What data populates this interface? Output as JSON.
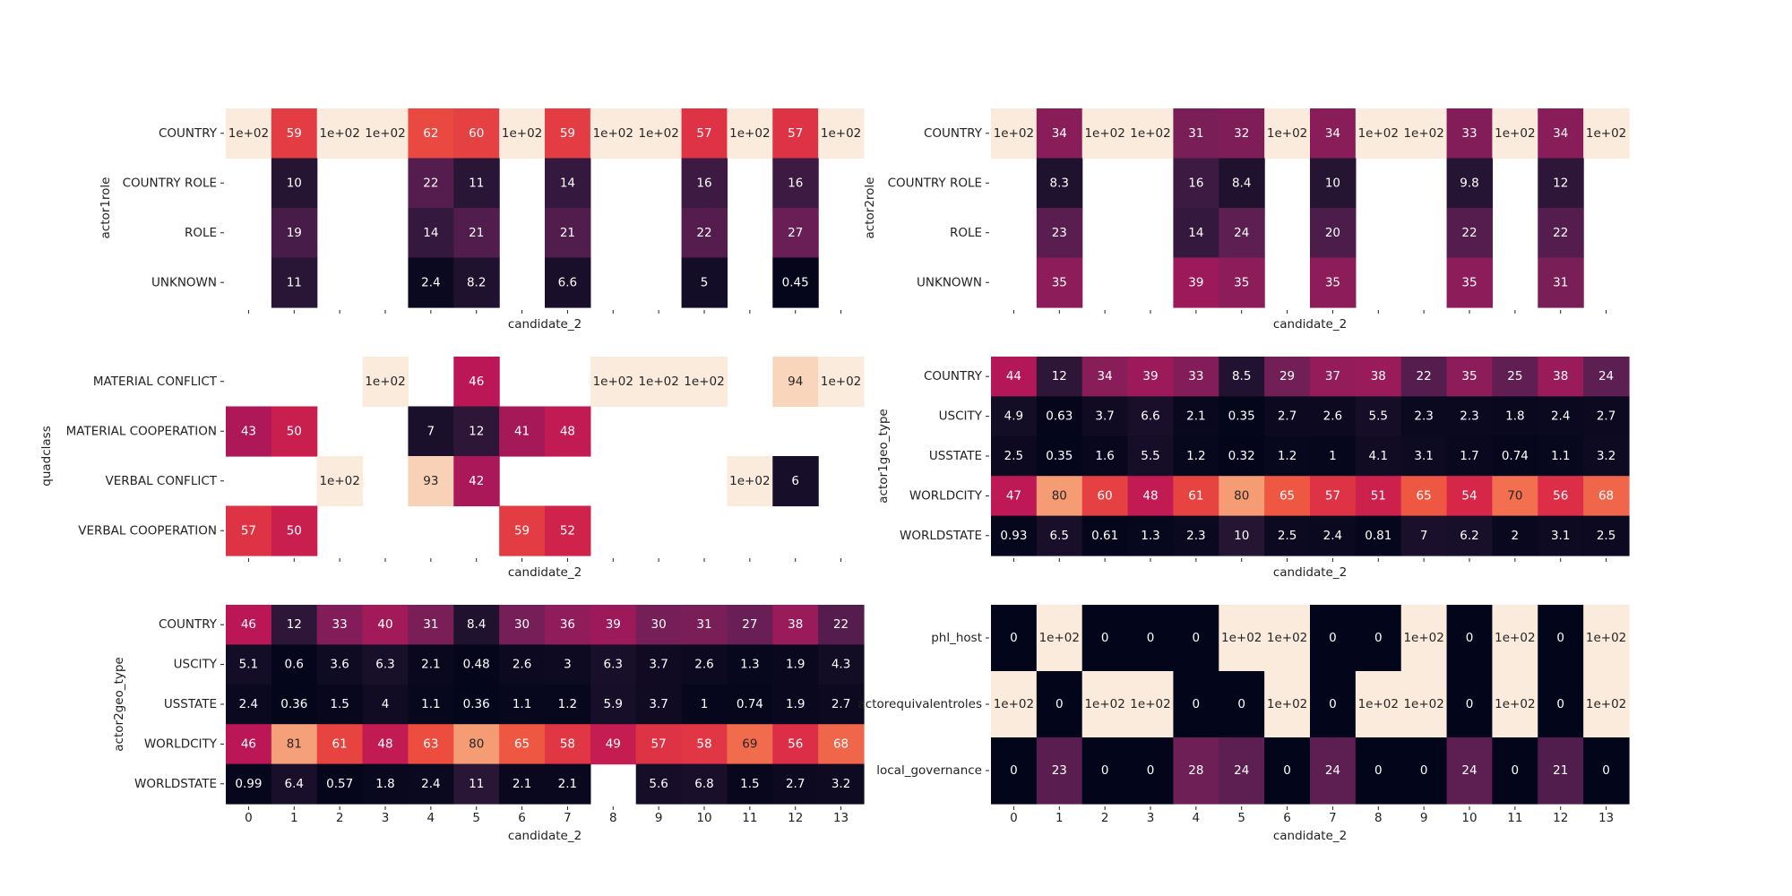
{
  "colormap": [
    "#03051a",
    "#221331",
    "#451c47",
    "#6a1f56",
    "#921c5b",
    "#b91657",
    "#d92847",
    "#ed503e",
    "#f47d57",
    "#f6a47c",
    "#f7c9aa",
    "#faebdd"
  ],
  "chart_data": [
    {
      "type": "heatmap",
      "ylabel": "actor1role",
      "xlabel": "candidate_2",
      "categories_x": [
        "0",
        "1",
        "2",
        "3",
        "4",
        "5",
        "6",
        "7",
        "8",
        "9",
        "10",
        "11",
        "12",
        "13"
      ],
      "x_tick_labels_shown": false,
      "categories_y": [
        "COUNTRY",
        "COUNTRY ROLE",
        "ROLE",
        "UNKNOWN"
      ],
      "vmin": 0,
      "vmax": 100,
      "values": [
        [
          100,
          59,
          100,
          100,
          62,
          60,
          100,
          59,
          100,
          100,
          57,
          100,
          57,
          100
        ],
        [
          null,
          10,
          null,
          null,
          22,
          11,
          null,
          14,
          null,
          null,
          16,
          null,
          16,
          null
        ],
        [
          null,
          19,
          null,
          null,
          14,
          21,
          null,
          21,
          null,
          null,
          22,
          null,
          27,
          null
        ],
        [
          null,
          11,
          null,
          null,
          2.4,
          8.2,
          null,
          6.6,
          null,
          null,
          5,
          null,
          0.45,
          null
        ]
      ],
      "annotations": [
        [
          "1e+02",
          "59",
          "1e+02",
          "1e+02",
          "62",
          "60",
          "1e+02",
          "59",
          "1e+02",
          "1e+02",
          "57",
          "1e+02",
          "57",
          "1e+02"
        ],
        [
          "",
          "10",
          "",
          "",
          "22",
          "11",
          "",
          "14",
          "",
          "",
          "16",
          "",
          "16",
          ""
        ],
        [
          "",
          "19",
          "",
          "",
          "14",
          "21",
          "",
          "21",
          "",
          "",
          "22",
          "",
          "27",
          ""
        ],
        [
          "",
          "11",
          "",
          "",
          "2.4",
          "8.2",
          "",
          "6.6",
          "",
          "",
          "5",
          "",
          "0.45",
          ""
        ]
      ]
    },
    {
      "type": "heatmap",
      "ylabel": "actor2role",
      "xlabel": "candidate_2",
      "categories_x": [
        "0",
        "1",
        "2",
        "3",
        "4",
        "5",
        "6",
        "7",
        "8",
        "9",
        "10",
        "11",
        "12",
        "13"
      ],
      "x_tick_labels_shown": false,
      "categories_y": [
        "COUNTRY",
        "COUNTRY ROLE",
        "ROLE",
        "UNKNOWN"
      ],
      "vmin": 0,
      "vmax": 100,
      "values": [
        [
          100,
          34,
          100,
          100,
          31,
          32,
          100,
          34,
          100,
          100,
          33,
          100,
          34,
          100
        ],
        [
          null,
          8.3,
          null,
          null,
          16,
          8.4,
          null,
          10,
          null,
          null,
          9.8,
          null,
          12,
          null
        ],
        [
          null,
          23,
          null,
          null,
          14,
          24,
          null,
          20,
          null,
          null,
          22,
          null,
          22,
          null
        ],
        [
          null,
          35,
          null,
          null,
          39,
          35,
          null,
          35,
          null,
          null,
          35,
          null,
          31,
          null
        ]
      ],
      "annotations": [
        [
          "1e+02",
          "34",
          "1e+02",
          "1e+02",
          "31",
          "32",
          "1e+02",
          "34",
          "1e+02",
          "1e+02",
          "33",
          "1e+02",
          "34",
          "1e+02"
        ],
        [
          "",
          "8.3",
          "",
          "",
          "16",
          "8.4",
          "",
          "10",
          "",
          "",
          "9.8",
          "",
          "12",
          ""
        ],
        [
          "",
          "23",
          "",
          "",
          "14",
          "24",
          "",
          "20",
          "",
          "",
          "22",
          "",
          "22",
          ""
        ],
        [
          "",
          "35",
          "",
          "",
          "39",
          "35",
          "",
          "35",
          "",
          "",
          "35",
          "",
          "31",
          ""
        ]
      ]
    },
    {
      "type": "heatmap",
      "ylabel": "quadclass",
      "xlabel": "candidate_2",
      "categories_x": [
        "0",
        "1",
        "2",
        "3",
        "4",
        "5",
        "6",
        "7",
        "8",
        "9",
        "10",
        "11",
        "12",
        "13"
      ],
      "x_tick_labels_shown": false,
      "categories_y": [
        "MATERIAL CONFLICT",
        "MATERIAL COOPERATION",
        "VERBAL CONFLICT",
        "VERBAL COOPERATION"
      ],
      "vmin": 0,
      "vmax": 100,
      "values": [
        [
          null,
          null,
          null,
          100,
          null,
          46,
          null,
          null,
          100,
          100,
          100,
          null,
          94,
          100
        ],
        [
          43,
          50,
          null,
          null,
          7,
          12,
          41,
          48,
          null,
          null,
          null,
          null,
          null,
          null
        ],
        [
          null,
          null,
          100,
          null,
          93,
          42,
          null,
          null,
          null,
          null,
          null,
          100,
          6,
          null
        ],
        [
          57,
          50,
          null,
          null,
          null,
          null,
          59,
          52,
          null,
          null,
          null,
          null,
          null,
          null
        ]
      ],
      "annotations": [
        [
          "",
          "",
          "",
          "1e+02",
          "",
          "46",
          "",
          "",
          "1e+02",
          "1e+02",
          "1e+02",
          "",
          "94",
          "1e+02"
        ],
        [
          "43",
          "50",
          "",
          "",
          "7",
          "12",
          "41",
          "48",
          "",
          "",
          "",
          "",
          "",
          ""
        ],
        [
          "",
          "",
          "1e+02",
          "",
          "93",
          "42",
          "",
          "",
          "",
          "",
          "",
          "1e+02",
          "6",
          ""
        ],
        [
          "57",
          "50",
          "",
          "",
          "",
          "",
          "59",
          "52",
          "",
          "",
          "",
          "",
          "",
          ""
        ]
      ]
    },
    {
      "type": "heatmap",
      "ylabel": "actor1geo_type",
      "xlabel": "candidate_2",
      "categories_x": [
        "0",
        "1",
        "2",
        "3",
        "4",
        "5",
        "6",
        "7",
        "8",
        "9",
        "10",
        "11",
        "12",
        "13"
      ],
      "x_tick_labels_shown": false,
      "categories_y": [
        "COUNTRY",
        "USCITY",
        "USSTATE",
        "WORLDCITY",
        "WORLDSTATE"
      ],
      "vmin": 0,
      "vmax": 100,
      "values": [
        [
          44,
          12,
          34,
          39,
          33,
          8.5,
          29,
          37,
          38,
          22,
          35,
          25,
          38,
          24
        ],
        [
          4.9,
          0.63,
          3.7,
          6.6,
          2.1,
          0.35,
          2.7,
          2.6,
          5.5,
          2.3,
          2.3,
          1.8,
          2.4,
          2.7
        ],
        [
          2.5,
          0.35,
          1.6,
          5.5,
          1.2,
          0.32,
          1.2,
          1,
          4.1,
          3.1,
          1.7,
          0.74,
          1.1,
          3.2
        ],
        [
          47,
          80,
          60,
          48,
          61,
          80,
          65,
          57,
          51,
          65,
          54,
          70,
          56,
          68
        ],
        [
          0.93,
          6.5,
          0.61,
          1.3,
          2.3,
          10,
          2.5,
          2.4,
          0.81,
          7,
          6.2,
          2,
          3.1,
          2.5
        ]
      ],
      "annotations": [
        [
          "44",
          "12",
          "34",
          "39",
          "33",
          "8.5",
          "29",
          "37",
          "38",
          "22",
          "35",
          "25",
          "38",
          "24"
        ],
        [
          "4.9",
          "0.63",
          "3.7",
          "6.6",
          "2.1",
          "0.35",
          "2.7",
          "2.6",
          "5.5",
          "2.3",
          "2.3",
          "1.8",
          "2.4",
          "2.7"
        ],
        [
          "2.5",
          "0.35",
          "1.6",
          "5.5",
          "1.2",
          "0.32",
          "1.2",
          "1",
          "4.1",
          "3.1",
          "1.7",
          "0.74",
          "1.1",
          "3.2"
        ],
        [
          "47",
          "80",
          "60",
          "48",
          "61",
          "80",
          "65",
          "57",
          "51",
          "65",
          "54",
          "70",
          "56",
          "68"
        ],
        [
          "0.93",
          "6.5",
          "0.61",
          "1.3",
          "2.3",
          "10",
          "2.5",
          "2.4",
          "0.81",
          "7",
          "6.2",
          "2",
          "3.1",
          "2.5"
        ]
      ]
    },
    {
      "type": "heatmap",
      "ylabel": "actor2geo_type",
      "xlabel": "candidate_2",
      "categories_x": [
        "0",
        "1",
        "2",
        "3",
        "4",
        "5",
        "6",
        "7",
        "8",
        "9",
        "10",
        "11",
        "12",
        "13"
      ],
      "x_tick_labels_shown": true,
      "categories_y": [
        "COUNTRY",
        "USCITY",
        "USSTATE",
        "WORLDCITY",
        "WORLDSTATE"
      ],
      "vmin": 0,
      "vmax": 100,
      "values": [
        [
          46,
          12,
          33,
          40,
          31,
          8.4,
          30,
          36,
          39,
          30,
          31,
          27,
          38,
          22
        ],
        [
          5.1,
          0.6,
          3.6,
          6.3,
          2.1,
          0.48,
          2.6,
          3,
          6.3,
          3.7,
          2.6,
          1.3,
          1.9,
          4.3
        ],
        [
          2.4,
          0.36,
          1.5,
          4,
          1.1,
          0.36,
          1.1,
          1.2,
          5.9,
          3.7,
          1,
          0.74,
          1.9,
          2.7
        ],
        [
          46,
          81,
          61,
          48,
          63,
          80,
          65,
          58,
          49,
          57,
          58,
          69,
          56,
          68
        ],
        [
          0.99,
          6.4,
          0.57,
          1.8,
          2.4,
          11,
          2.1,
          2.1,
          null,
          5.6,
          6.8,
          1.5,
          2.7,
          3.2
        ]
      ],
      "annotations": [
        [
          "46",
          "12",
          "33",
          "40",
          "31",
          "8.4",
          "30",
          "36",
          "39",
          "30",
          "31",
          "27",
          "38",
          "22"
        ],
        [
          "5.1",
          "0.6",
          "3.6",
          "6.3",
          "2.1",
          "0.48",
          "2.6",
          "3",
          "6.3",
          "3.7",
          "2.6",
          "1.3",
          "1.9",
          "4.3"
        ],
        [
          "2.4",
          "0.36",
          "1.5",
          "4",
          "1.1",
          "0.36",
          "1.1",
          "1.2",
          "5.9",
          "3.7",
          "1",
          "0.74",
          "1.9",
          "2.7"
        ],
        [
          "46",
          "81",
          "61",
          "48",
          "63",
          "80",
          "65",
          "58",
          "49",
          "57",
          "58",
          "69",
          "56",
          "68"
        ],
        [
          "0.99",
          "6.4",
          "0.57",
          "1.8",
          "2.4",
          "11",
          "2.1",
          "2.1",
          "",
          "5.6",
          "6.8",
          "1.5",
          "2.7",
          "3.2"
        ]
      ]
    },
    {
      "type": "heatmap",
      "ylabel": "",
      "xlabel": "candidate_2",
      "categories_x": [
        "0",
        "1",
        "2",
        "3",
        "4",
        "5",
        "6",
        "7",
        "8",
        "9",
        "10",
        "11",
        "12",
        "13"
      ],
      "x_tick_labels_shown": true,
      "categories_y": [
        "phl_host",
        "actorequivalentroles",
        "local_governance"
      ],
      "vmin": 0,
      "vmax": 100,
      "values": [
        [
          0,
          100,
          0,
          0,
          0,
          100,
          100,
          0,
          0,
          100,
          0,
          100,
          0,
          100
        ],
        [
          100,
          0,
          100,
          100,
          0,
          0,
          100,
          0,
          100,
          100,
          0,
          100,
          0,
          100
        ],
        [
          0,
          23,
          0,
          0,
          28,
          24,
          0,
          24,
          0,
          0,
          24,
          0,
          21,
          0
        ]
      ],
      "annotations": [
        [
          "0",
          "1e+02",
          "0",
          "0",
          "0",
          "1e+02",
          "1e+02",
          "0",
          "0",
          "1e+02",
          "0",
          "1e+02",
          "0",
          "1e+02"
        ],
        [
          "1e+02",
          "0",
          "1e+02",
          "1e+02",
          "0",
          "0",
          "1e+02",
          "0",
          "1e+02",
          "1e+02",
          "0",
          "1e+02",
          "0",
          "1e+02"
        ],
        [
          "0",
          "23",
          "0",
          "0",
          "28",
          "24",
          "0",
          "24",
          "0",
          "0",
          "24",
          "0",
          "21",
          "0"
        ]
      ]
    }
  ]
}
